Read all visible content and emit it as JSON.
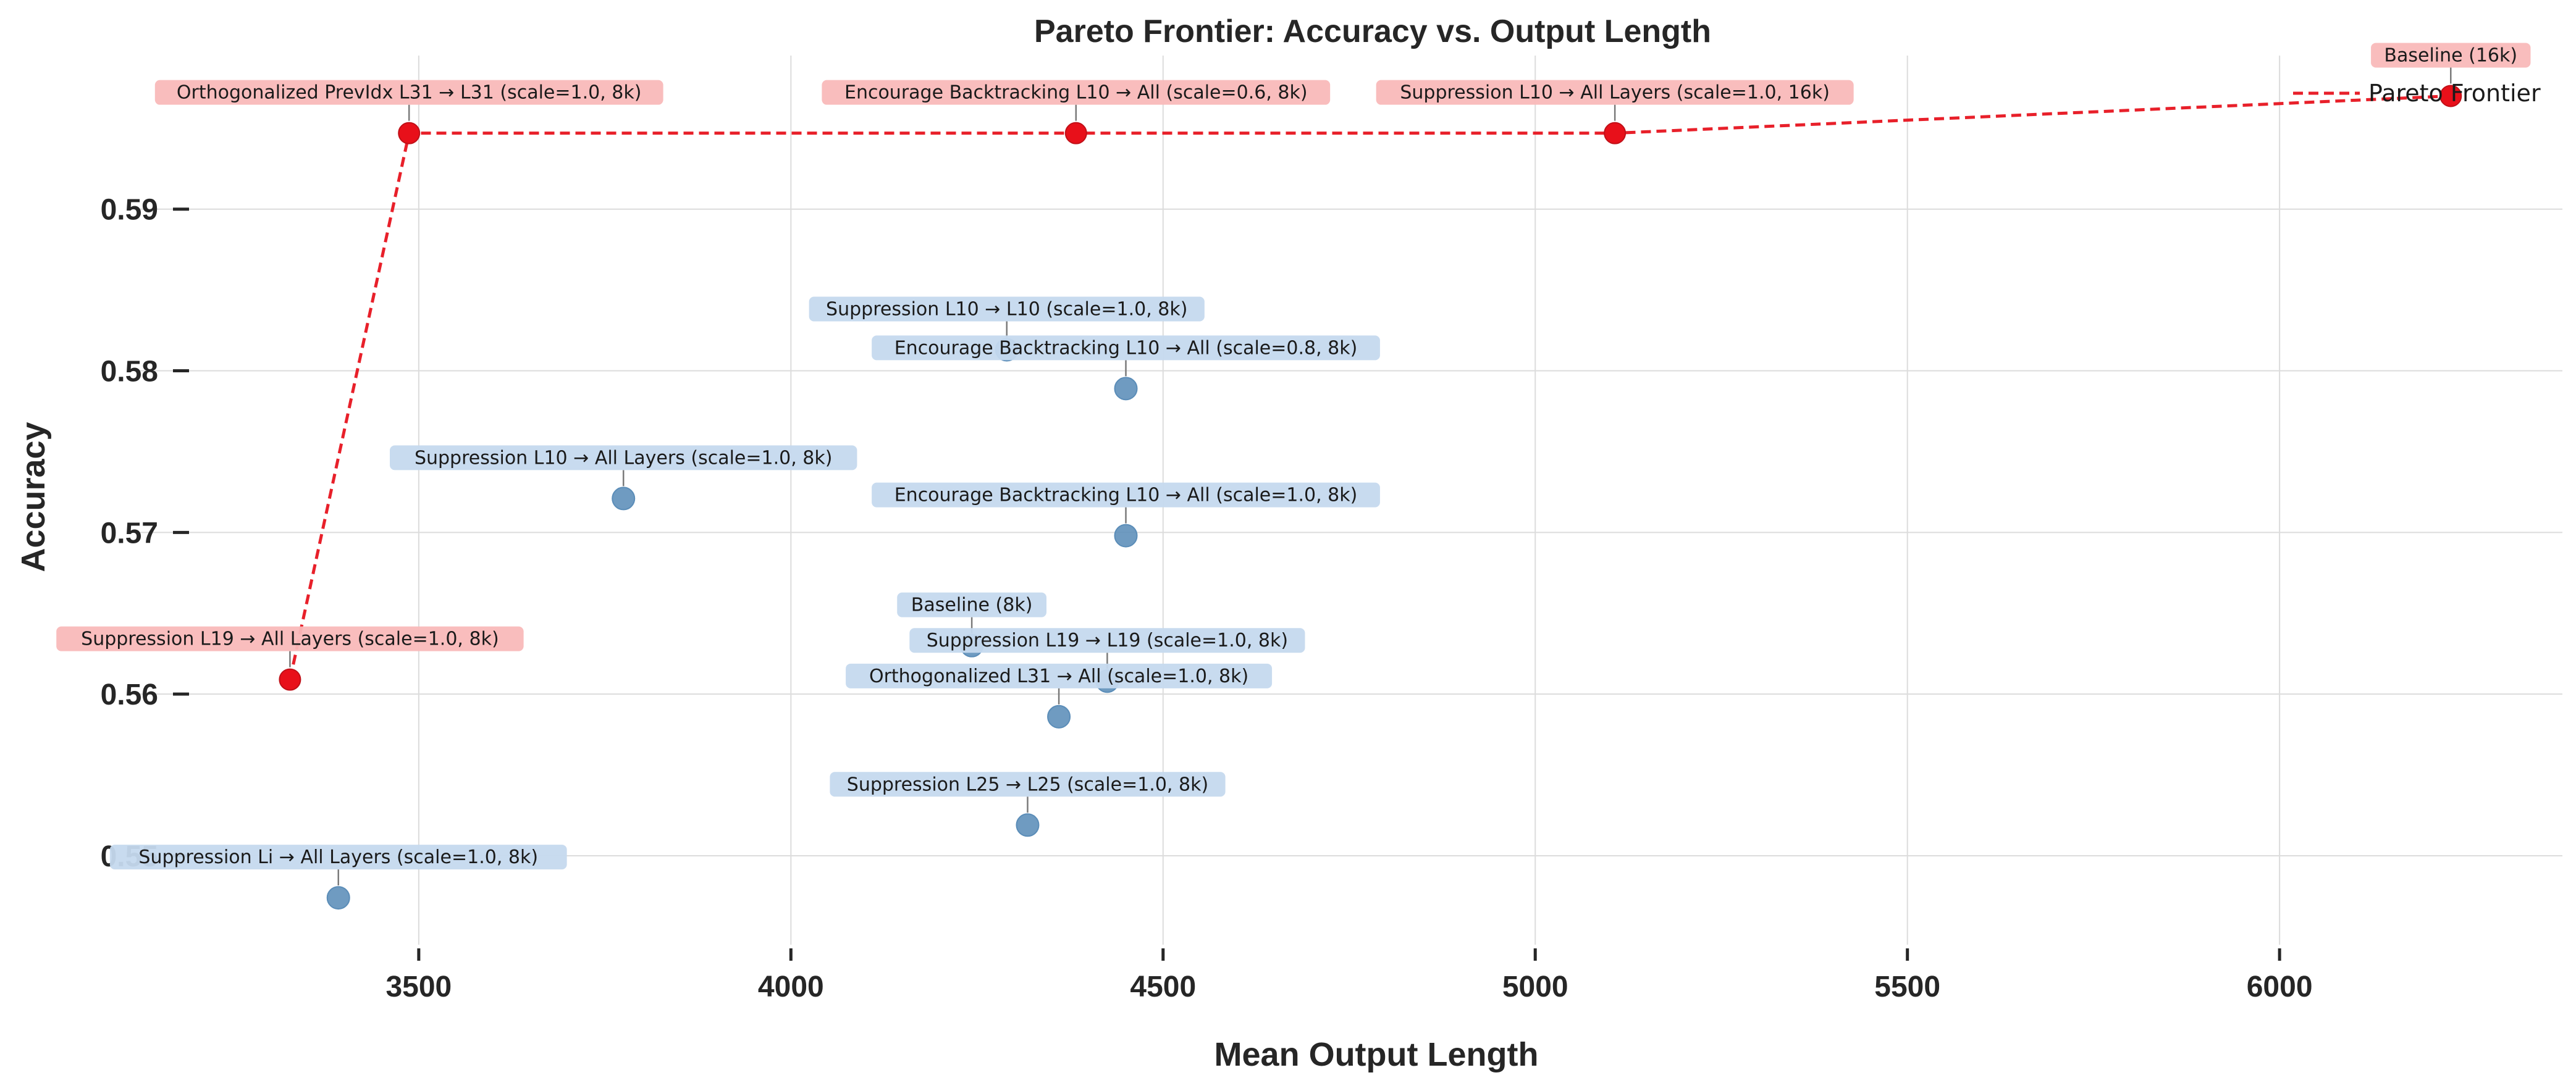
{
  "chart_data": {
    "type": "scatter",
    "title": "Pareto Frontier: Accuracy vs. Output Length",
    "xlabel": "Mean Output Length",
    "ylabel": "Accuracy",
    "xlim": [
      3120,
      6380
    ],
    "ylim": [
      0.5445,
      0.5995
    ],
    "xticks": [
      3500,
      4000,
      4500,
      5000,
      5500,
      6000
    ],
    "xtick_labels": [
      "3500",
      "4000",
      "4500",
      "5000",
      "5500",
      "6000"
    ],
    "yticks": [
      0.55,
      0.56,
      0.57,
      0.58,
      0.59
    ],
    "ytick_labels": [
      "0.55",
      "0.56",
      "0.57",
      "0.58",
      "0.59"
    ],
    "grid": true,
    "legend": {
      "position": "top-right",
      "entries": [
        "Pareto Frontier"
      ]
    },
    "colors": {
      "frontier": "#e8101a",
      "frontier_line": "#e8202a",
      "other": "#5b8db8",
      "frontier_label_bg": "#f9b9b9",
      "other_label_bg": "#c5d9ee"
    },
    "points": [
      {
        "label": "Orthogonalized PrevIdx L31 → L31 (scale=1.0, 8k)",
        "x": 3487,
        "y": 0.5947,
        "frontier": true
      },
      {
        "label": "Encourage Backtracking L10 → All (scale=0.6, 8k)",
        "x": 4383,
        "y": 0.5947,
        "frontier": true
      },
      {
        "label": "Suppression L10 → All Layers (scale=1.0, 16k)",
        "x": 5107,
        "y": 0.5947,
        "frontier": true
      },
      {
        "label": "Baseline (16k)",
        "x": 6230,
        "y": 0.597,
        "frontier": true
      },
      {
        "label": "Suppression L19 → All Layers (scale=1.0, 8k)",
        "x": 3327,
        "y": 0.5609,
        "frontier": true
      },
      {
        "label": "Suppression L10 → L10 (scale=1.0, 8k)",
        "x": 4290,
        "y": 0.5813,
        "frontier": false
      },
      {
        "label": "Encourage Backtracking L10 → All (scale=0.8, 8k)",
        "x": 4450,
        "y": 0.5789,
        "frontier": false
      },
      {
        "label": "Suppression L10 → All Layers (scale=1.0, 8k)",
        "x": 3775,
        "y": 0.5721,
        "frontier": false
      },
      {
        "label": "Encourage Backtracking L10 → All (scale=1.0, 8k)",
        "x": 4450,
        "y": 0.5698,
        "frontier": false
      },
      {
        "label": "Baseline (8k)",
        "x": 4243,
        "y": 0.563,
        "frontier": false
      },
      {
        "label": "Suppression L19 → L19 (scale=1.0, 8k)",
        "x": 4425,
        "y": 0.5608,
        "frontier": false
      },
      {
        "label": "Orthogonalized L31 → All (scale=1.0, 8k)",
        "x": 4360,
        "y": 0.5586,
        "frontier": false
      },
      {
        "label": "Suppression L25 → L25 (scale=1.0, 8k)",
        "x": 4318,
        "y": 0.5519,
        "frontier": false
      },
      {
        "label": "Suppression Li → All Layers (scale=1.0, 8k)",
        "x": 3392,
        "y": 0.5474,
        "frontier": false
      }
    ],
    "frontier_path": [
      {
        "x": 3327,
        "y": 0.5609
      },
      {
        "x": 3487,
        "y": 0.5947
      },
      {
        "x": 4383,
        "y": 0.5947
      },
      {
        "x": 5107,
        "y": 0.5947
      },
      {
        "x": 6230,
        "y": 0.597
      }
    ]
  }
}
